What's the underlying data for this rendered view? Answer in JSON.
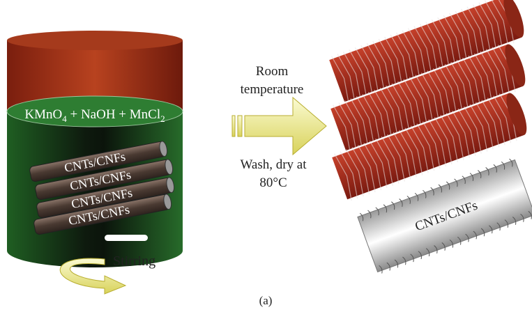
{
  "beaker": {
    "solution_label": [
      "KMnO",
      "4",
      " + NaOH + MnCl",
      "2"
    ],
    "rods": [
      "CNTs/CNFs",
      "CNTs/CNFs",
      "CNTs/CNFs",
      "CNTs/CNFs"
    ],
    "stirring": "Stirring"
  },
  "arrow": {
    "above": [
      "Room",
      "temperature"
    ],
    "below": [
      "Wash, dry at",
      "80°C"
    ]
  },
  "product": {
    "core_label": "CNTs/CNFs"
  },
  "caption": "(a)"
}
